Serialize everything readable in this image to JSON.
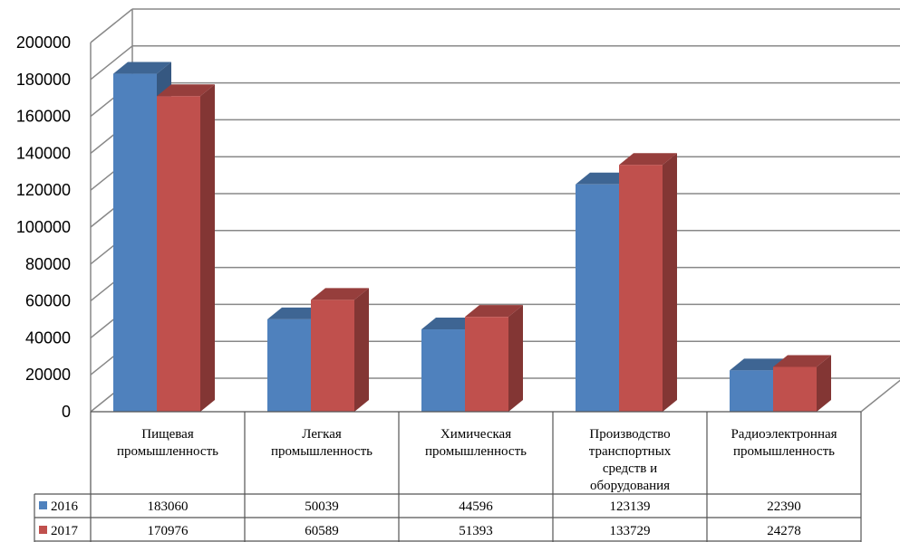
{
  "chart_data": {
    "type": "bar",
    "title": "",
    "xlabel": "",
    "ylabel": "",
    "ylim": [
      0,
      200000
    ],
    "y_ticks": [
      "0",
      "20000",
      "40000",
      "60000",
      "80000",
      "100000",
      "120000",
      "140000",
      "160000",
      "180000",
      "200000"
    ],
    "grid": true,
    "three_d": true,
    "legend": "data-table",
    "categories": [
      [
        "Пищевая",
        "промышленность"
      ],
      [
        "Легкая",
        "промышленность"
      ],
      [
        "Химическая",
        "промышленность"
      ],
      [
        "Производство",
        "транспортных",
        "средств и",
        "оборудования"
      ],
      [
        "Радиоэлектронная",
        "промышленность"
      ]
    ],
    "series": [
      {
        "name": "2016",
        "color": "#4F81BD",
        "values": [
          183060,
          50039,
          44596,
          123139,
          22390
        ],
        "labels": [
          "183060",
          "50039",
          "44596",
          "123139",
          "22390"
        ]
      },
      {
        "name": "2017",
        "color": "#C0504D",
        "values": [
          170976,
          60589,
          51393,
          133729,
          24278
        ],
        "labels": [
          "170976",
          "60589",
          "51393",
          "133729",
          "24278"
        ]
      }
    ]
  }
}
